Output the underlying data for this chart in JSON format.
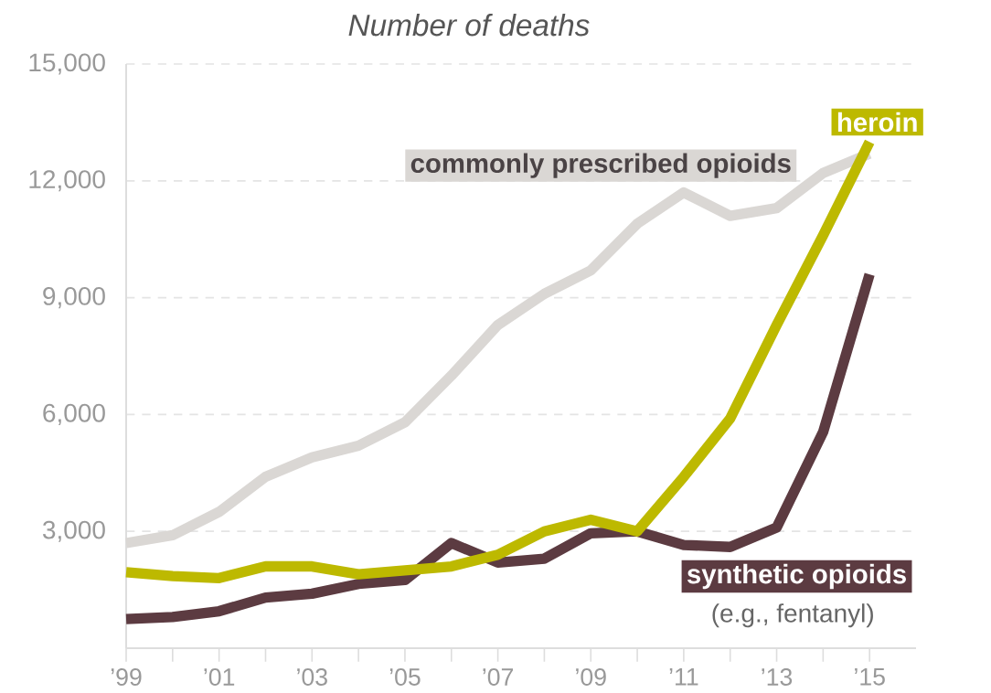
{
  "chart_data": {
    "type": "line",
    "ylabel": "Number of deaths",
    "x": [
      1999,
      2000,
      2001,
      2002,
      2003,
      2004,
      2005,
      2006,
      2007,
      2008,
      2009,
      2010,
      2011,
      2012,
      2013,
      2014,
      2015
    ],
    "xlim": [
      1999,
      2016
    ],
    "xticks": [
      {
        "value": 1999,
        "label": "’99"
      },
      {
        "value": 2000,
        "label": null
      },
      {
        "value": 2001,
        "label": "’01"
      },
      {
        "value": 2002,
        "label": null
      },
      {
        "value": 2003,
        "label": "’03"
      },
      {
        "value": 2004,
        "label": null
      },
      {
        "value": 2005,
        "label": "’05"
      },
      {
        "value": 2006,
        "label": null
      },
      {
        "value": 2007,
        "label": "’07"
      },
      {
        "value": 2008,
        "label": null
      },
      {
        "value": 2009,
        "label": "’09"
      },
      {
        "value": 2010,
        "label": null
      },
      {
        "value": 2011,
        "label": "’11"
      },
      {
        "value": 2012,
        "label": null
      },
      {
        "value": 2013,
        "label": "’13"
      },
      {
        "value": 2014,
        "label": null
      },
      {
        "value": 2015,
        "label": "’15"
      }
    ],
    "ylim": [
      0,
      15000
    ],
    "yticks": [
      {
        "value": 3000,
        "label": "3,000"
      },
      {
        "value": 6000,
        "label": "6,000"
      },
      {
        "value": 9000,
        "label": "9,000"
      },
      {
        "value": 12000,
        "label": "12,000"
      },
      {
        "value": 15000,
        "label": "15,000"
      }
    ],
    "grid": "y",
    "line_style": "solid",
    "marker": "none",
    "annotations": [
      "(e.g., fentanyl)"
    ],
    "series": [
      {
        "name": "commonly prescribed opioids",
        "color": "#dad7d4",
        "values": [
          2700,
          2900,
          3500,
          4400,
          4900,
          5200,
          5800,
          7000,
          8300,
          9100,
          9700,
          10900,
          11700,
          11100,
          11300,
          12200,
          12700
        ]
      },
      {
        "name": "synthetic opioids",
        "color": "#5c3b41",
        "values": [
          750,
          800,
          950,
          1300,
          1400,
          1650,
          1750,
          2700,
          2200,
          2300,
          2950,
          3000,
          2650,
          2600,
          3100,
          5550,
          9600
        ]
      },
      {
        "name": "heroin",
        "color": "#bdb900",
        "values": [
          1950,
          1850,
          1800,
          2100,
          2100,
          1900,
          2000,
          2100,
          2400,
          3000,
          3300,
          3000,
          4400,
          5900,
          8300,
          10600,
          13000
        ]
      }
    ]
  }
}
